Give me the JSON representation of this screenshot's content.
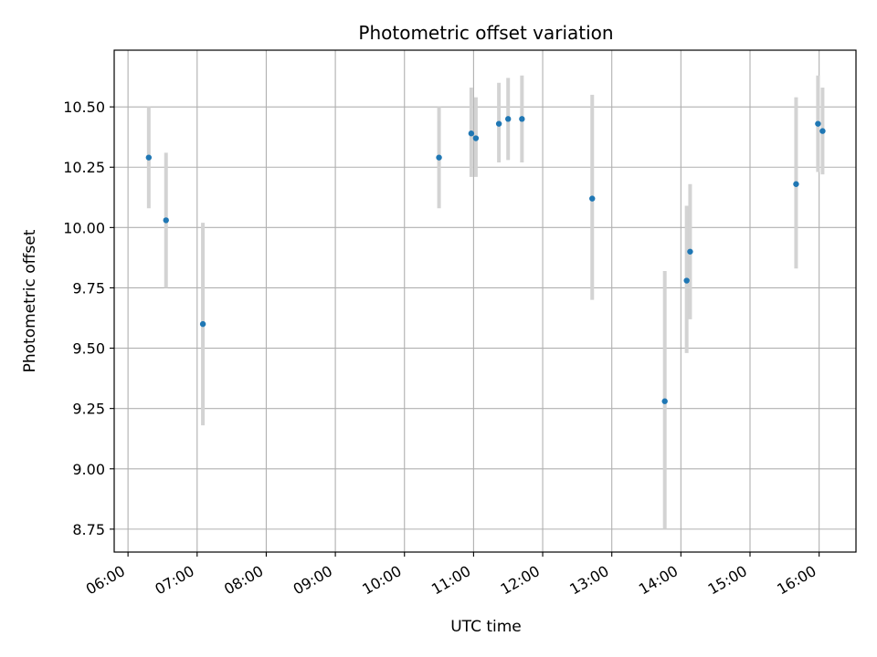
{
  "chart_data": {
    "type": "scatter",
    "title": "Photometric offset variation",
    "xlabel": "UTC time",
    "ylabel": "Photometric offset",
    "grid": true,
    "xlim": [
      "05:48",
      "16:32"
    ],
    "ylim": [
      8.655,
      10.735
    ],
    "xticks": [
      "06:00",
      "07:00",
      "08:00",
      "09:00",
      "10:00",
      "11:00",
      "12:00",
      "13:00",
      "14:00",
      "15:00",
      "16:00"
    ],
    "yticks": [
      "8.75",
      "9.00",
      "9.25",
      "9.50",
      "9.75",
      "10.00",
      "10.25",
      "10.50"
    ],
    "marker_color": "#1f77b4",
    "errorbar_color": "#d3d3d3",
    "points": [
      {
        "x": "06:18",
        "y": 10.29,
        "ylow": 10.08,
        "yhigh": 10.5
      },
      {
        "x": "06:33",
        "y": 10.03,
        "ylow": 9.75,
        "yhigh": 10.31
      },
      {
        "x": "07:05",
        "y": 9.6,
        "ylow": 9.18,
        "yhigh": 10.02
      },
      {
        "x": "10:30",
        "y": 10.29,
        "ylow": 10.08,
        "yhigh": 10.5
      },
      {
        "x": "10:58",
        "y": 10.39,
        "ylow": 10.21,
        "yhigh": 10.58
      },
      {
        "x": "11:02",
        "y": 10.37,
        "ylow": 10.21,
        "yhigh": 10.54
      },
      {
        "x": "11:22",
        "y": 10.43,
        "ylow": 10.27,
        "yhigh": 10.6
      },
      {
        "x": "11:30",
        "y": 10.45,
        "ylow": 10.28,
        "yhigh": 10.62
      },
      {
        "x": "11:42",
        "y": 10.45,
        "ylow": 10.27,
        "yhigh": 10.63
      },
      {
        "x": "12:43",
        "y": 10.12,
        "ylow": 9.7,
        "yhigh": 10.55
      },
      {
        "x": "13:46",
        "y": 9.28,
        "ylow": 8.75,
        "yhigh": 9.82
      },
      {
        "x": "14:05",
        "y": 9.78,
        "ylow": 9.48,
        "yhigh": 10.09
      },
      {
        "x": "14:08",
        "y": 9.9,
        "ylow": 9.62,
        "yhigh": 10.18
      },
      {
        "x": "15:40",
        "y": 10.18,
        "ylow": 9.83,
        "yhigh": 10.54
      },
      {
        "x": "15:59",
        "y": 10.43,
        "ylow": 10.23,
        "yhigh": 10.63
      },
      {
        "x": "16:03",
        "y": 10.4,
        "ylow": 10.22,
        "yhigh": 10.58
      }
    ]
  }
}
